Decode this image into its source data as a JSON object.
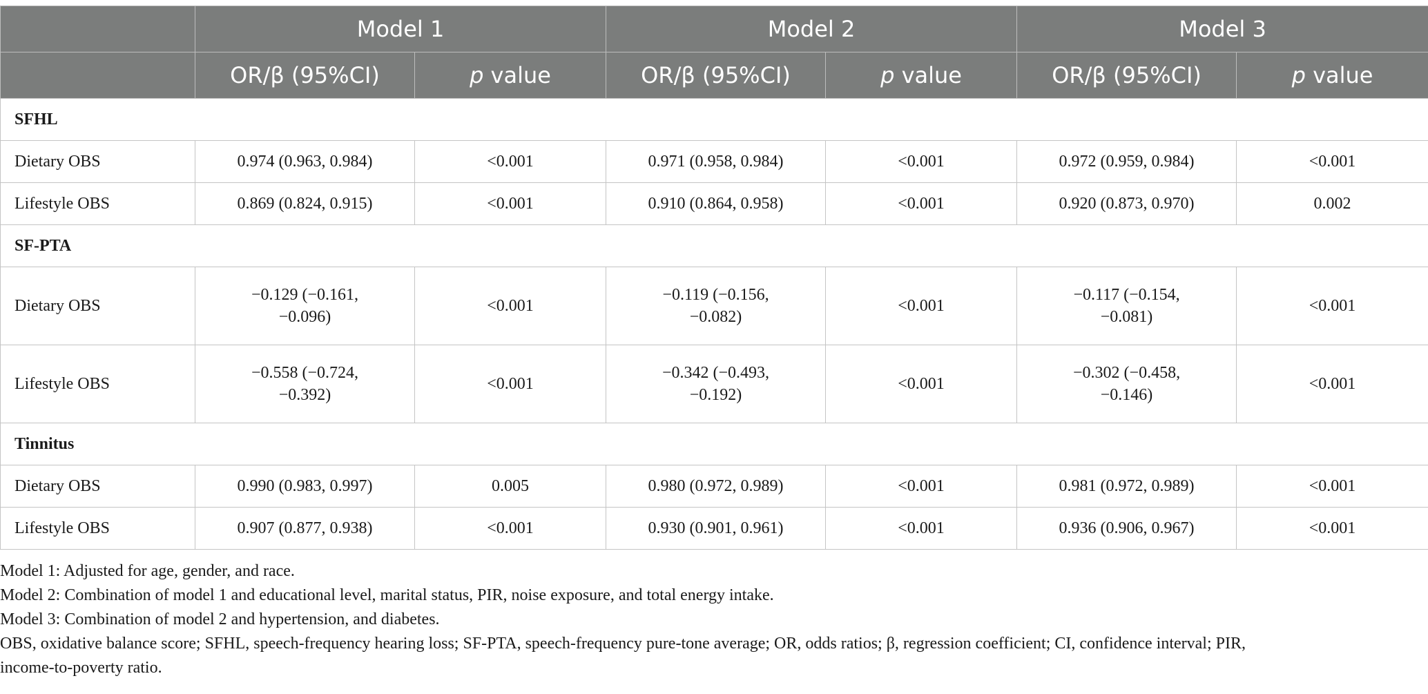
{
  "header": {
    "models": [
      "Model 1",
      "Model 2",
      "Model 3"
    ],
    "col_estimate": "OR/β (95%CI)",
    "col_p_prefix": "p",
    "col_p_suffix": " value"
  },
  "sections": [
    {
      "title": "SFHL",
      "rows": [
        {
          "label": "Dietary OBS",
          "m1_est": "0.974 (0.963, 0.984)",
          "m1_p": "<0.001",
          "m2_est": "0.971 (0.958, 0.984)",
          "m2_p": "<0.001",
          "m3_est": "0.972 (0.959, 0.984)",
          "m3_p": "<0.001"
        },
        {
          "label": "Lifestyle OBS",
          "m1_est": "0.869 (0.824, 0.915)",
          "m1_p": "<0.001",
          "m2_est": "0.910 (0.864, 0.958)",
          "m2_p": "<0.001",
          "m3_est": "0.920 (0.873, 0.970)",
          "m3_p": "0.002"
        }
      ]
    },
    {
      "title": "SF-PTA",
      "rows": [
        {
          "label": "Dietary OBS",
          "m1_est_a": "−0.129 (−0.161,",
          "m1_est_b": "−0.096)",
          "m1_p": "<0.001",
          "m2_est_a": "−0.119 (−0.156,",
          "m2_est_b": "−0.082)",
          "m2_p": "<0.001",
          "m3_est_a": "−0.117 (−0.154,",
          "m3_est_b": "−0.081)",
          "m3_p": "<0.001"
        },
        {
          "label": "Lifestyle OBS",
          "m1_est_a": "−0.558 (−0.724,",
          "m1_est_b": "−0.392)",
          "m1_p": "<0.001",
          "m2_est_a": "−0.342 (−0.493,",
          "m2_est_b": "−0.192)",
          "m2_p": "<0.001",
          "m3_est_a": "−0.302 (−0.458,",
          "m3_est_b": "−0.146)",
          "m3_p": "<0.001"
        }
      ]
    },
    {
      "title": "Tinnitus",
      "rows": [
        {
          "label": "Dietary OBS",
          "m1_est": "0.990 (0.983, 0.997)",
          "m1_p": "0.005",
          "m2_est": "0.980 (0.972, 0.989)",
          "m2_p": "<0.001",
          "m3_est": "0.981 (0.972, 0.989)",
          "m3_p": "<0.001"
        },
        {
          "label": "Lifestyle OBS",
          "m1_est": "0.907 (0.877, 0.938)",
          "m1_p": "<0.001",
          "m2_est": "0.930 (0.901, 0.961)",
          "m2_p": "<0.001",
          "m3_est": "0.936 (0.906, 0.967)",
          "m3_p": "<0.001"
        }
      ]
    }
  ],
  "notes": [
    "Model 1: Adjusted for age, gender, and race.",
    "Model 2: Combination of model 1 and educational level, marital status, PIR, noise exposure, and total energy intake.",
    "Model 3: Combination of model 2 and hypertension, and diabetes.",
    "OBS, oxidative balance score; SFHL, speech-frequency hearing loss; SF-PTA, speech-frequency pure-tone average; OR, odds ratios; β, regression coefficient; CI, confidence interval; PIR,",
    "income-to-poverty ratio."
  ]
}
